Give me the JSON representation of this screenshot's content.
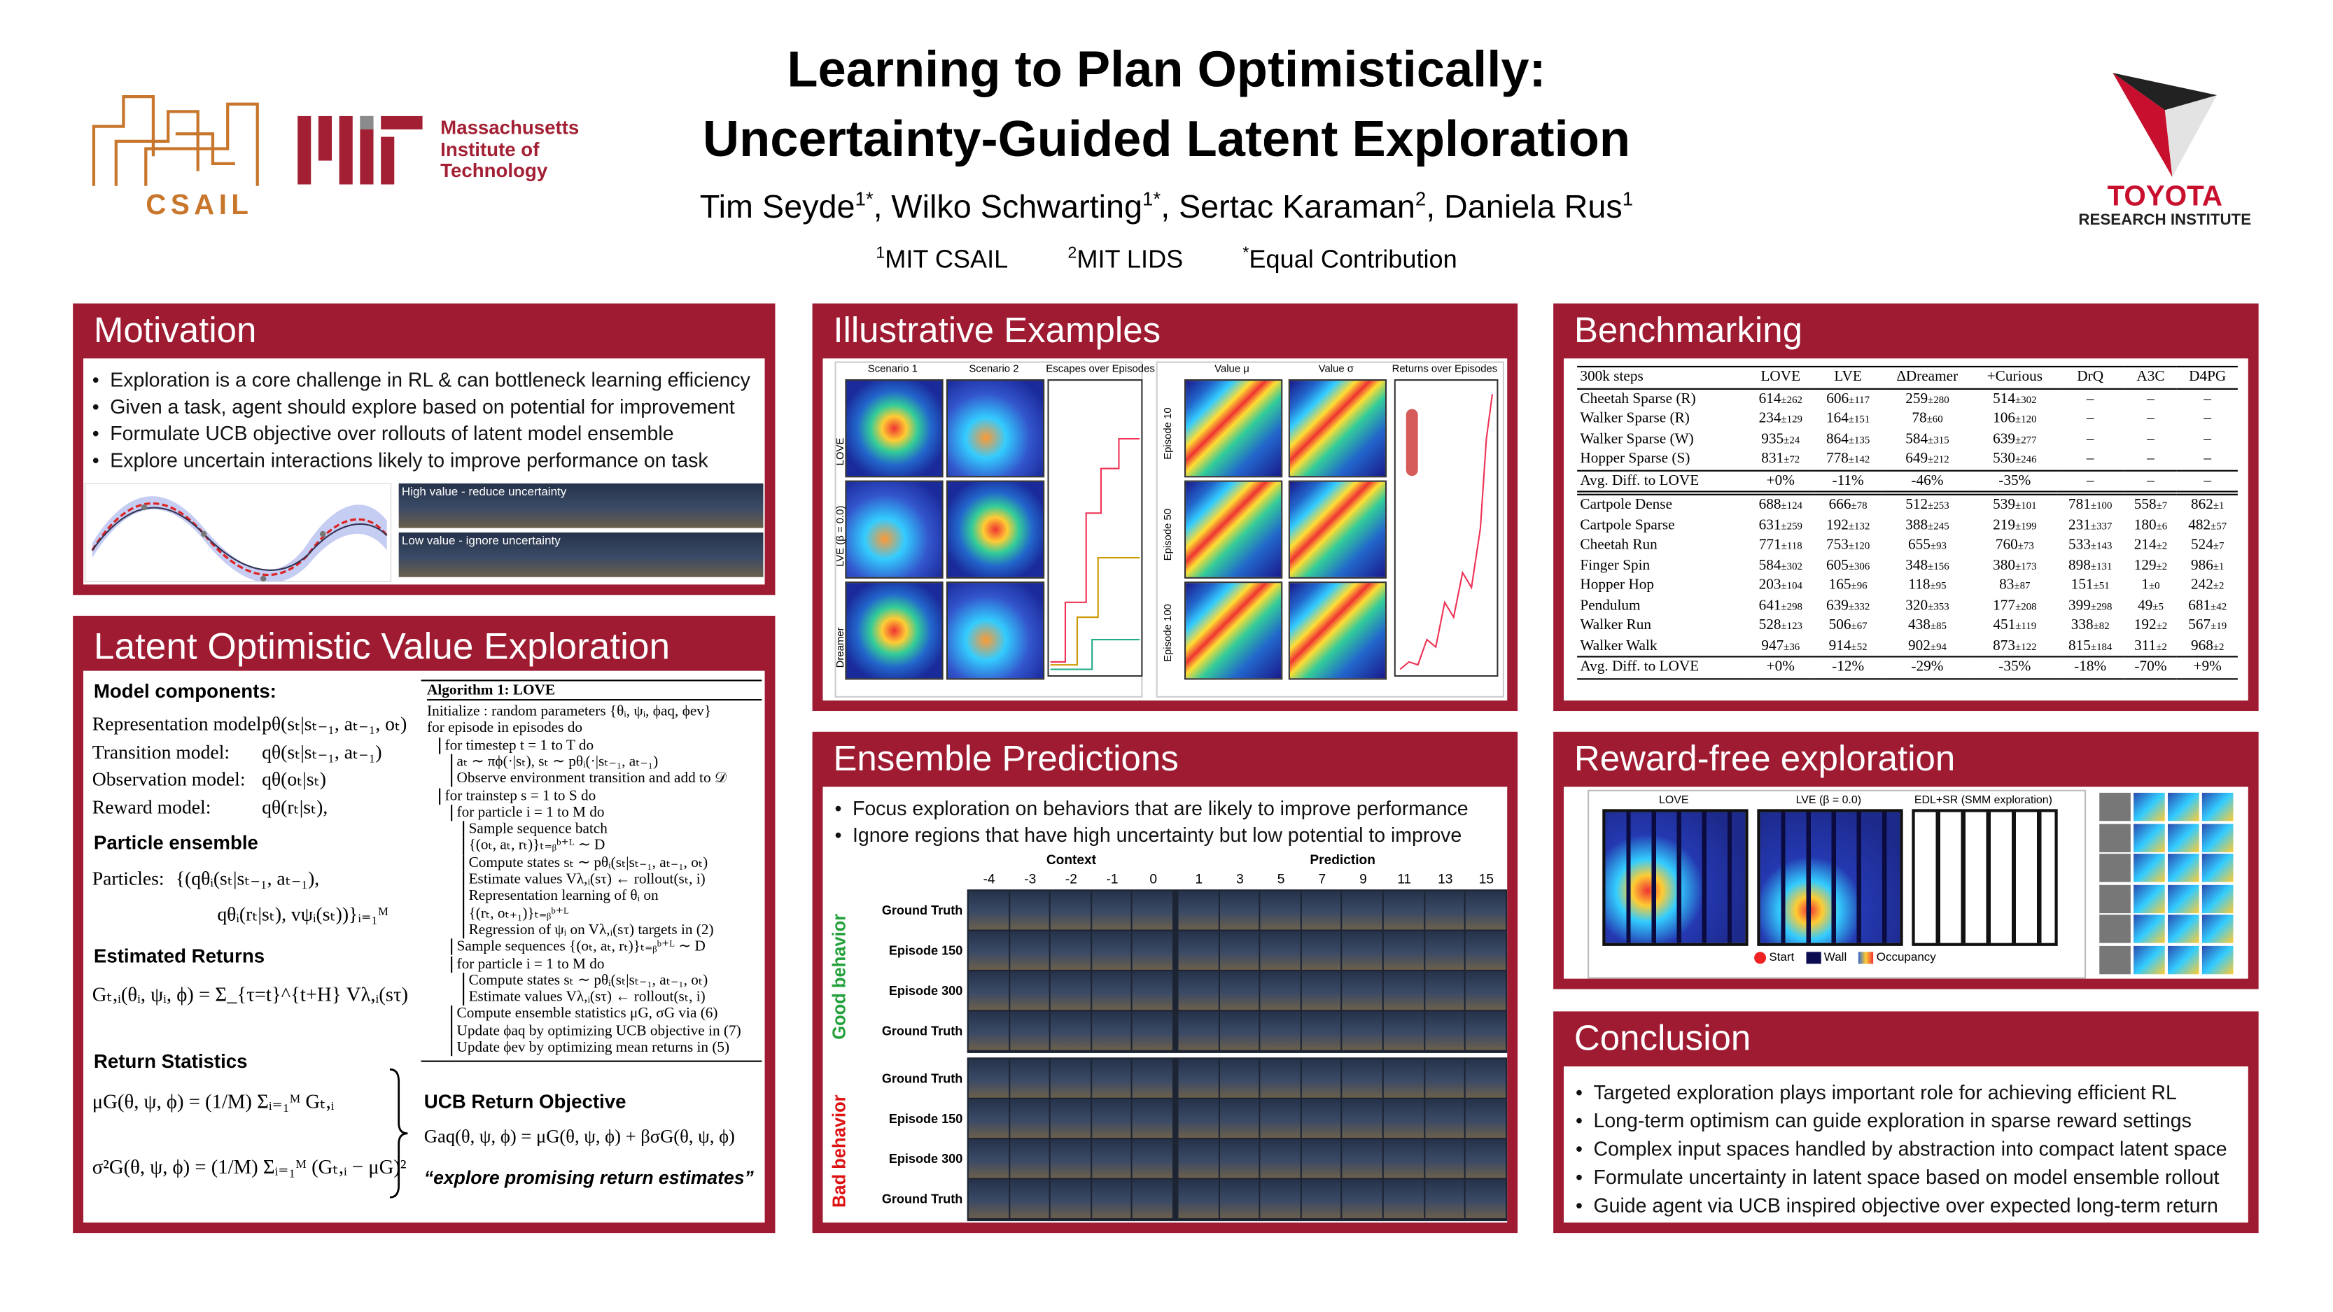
{
  "header": {
    "title_lines": [
      "Learning to Plan Optimistically:",
      "Uncertainty-Guided Latent Exploration"
    ],
    "authors": [
      {
        "name": "Tim Seyde",
        "sup": "1*",
        "suffix": ","
      },
      {
        "name": "Wilko Schwarting",
        "sup": "1*",
        "suffix": ","
      },
      {
        "name": "Sertac Karaman",
        "sup": "2",
        "suffix": ","
      },
      {
        "name": "Daniela Rus",
        "sup": "1"
      }
    ],
    "affiliations": [
      {
        "sup": "1",
        "text": "MIT CSAIL"
      },
      {
        "sup": "2",
        "text": "MIT LIDS"
      },
      {
        "sup": "*",
        "text": "Equal Contribution"
      }
    ],
    "logos": {
      "csail": "CSAIL",
      "mit": [
        "Massachusetts",
        "Institute of",
        "Technology"
      ],
      "toyota": "TOYOTA",
      "toyota_sub": "RESEARCH INSTITUTE"
    }
  },
  "motivation": {
    "title": "Motivation",
    "bullets": [
      "Exploration is a core challenge in RL & can bottleneck learning efficiency",
      "Given a task, agent should explore based on potential for improvement",
      "Formulate UCB objective over rollouts of latent model ensemble",
      "Explore uncertain interactions likely to improve performance on task"
    ],
    "strip_captions": [
      "High value - reduce uncertainty",
      "Low value - ignore uncertainty"
    ]
  },
  "love": {
    "title": "Latent Optimistic Value Exploration",
    "model_heading": "Model components:",
    "models": [
      {
        "label": "Representation model:",
        "formula": "pθ(sₜ|sₜ₋₁, aₜ₋₁, oₜ)"
      },
      {
        "label": "Transition model:",
        "formula": "qθ(sₜ|sₜ₋₁, aₜ₋₁)"
      },
      {
        "label": "Observation model:",
        "formula": "qθ(oₜ|sₜ)"
      },
      {
        "label": "Reward model:",
        "formula": "qθ(rₜ|sₜ),"
      }
    ],
    "particle_heading": "Particle ensemble",
    "particles_label": "Particles:",
    "particles_lines": [
      "{(qθᵢ(sₜ|sₜ₋₁, aₜ₋₁),",
      "qθᵢ(rₜ|sₜ),  vψᵢ(sₜ))}ᵢ₌₁ᴹ"
    ],
    "returns_heading": "Estimated Returns",
    "returns_formula": "Gₜ,ᵢ(θᵢ, ψᵢ, ϕ) = Σ_{τ=t}^{t+H} Vλ,ᵢ(sτ)",
    "stats_heading": "Return Statistics",
    "mean_formula": "μG(θ, ψ, ϕ) = (1/M) Σᵢ₌₁ᴹ Gₜ,ᵢ",
    "var_formula": "σ²G(θ, ψ, ϕ) = (1/M) Σᵢ₌₁ᴹ (Gₜ,ᵢ − μG)²",
    "ucb_heading": "UCB Return Objective",
    "ucb_formula": "Gaq(θ, ψ, ϕ) = μG(θ, ψ, ϕ) + βσG(θ, ψ, ϕ)",
    "ucb_quote": "“explore promising return estimates”",
    "algorithm": {
      "title": "Algorithm 1: LOVE",
      "lines": [
        "Initialize : random parameters {θᵢ, ψᵢ, ϕaq, ϕev}",
        "for episode in episodes do",
        "for timestep t = 1 to T do",
        "aₜ ∼ πϕ(·|sₜ), sₜ ∼ pθᵢ(·|sₜ₋₁, aₜ₋₁)",
        "Observe environment transition and add to 𝒟",
        "for trainstep s = 1 to S do",
        "for particle i = 1 to M do",
        "Sample sequence batch",
        "{(oₜ, aₜ, rₜ)}ₜ₌ᵦᵇ⁺ᴸ ∼ D",
        "Compute states sₜ ∼ pθᵢ(sₜ|sₜ₋₁, aₜ₋₁, oₜ)",
        "Estimate values Vλ,ᵢ(sτ) ← rollout(sₜ, i)",
        "Representation learning of θᵢ on",
        "{(rₜ, oₜ₊₁)}ₜ₌ᵦᵇ⁺ᴸ",
        "Regression of ψᵢ on Vλ,ᵢ(sτ) targets in (2)",
        "Sample sequences {(oₜ, aₜ, rₜ)}ₜ₌ᵦᵇ⁺ᴸ ∼ D",
        "for particle i = 1 to M do",
        "Compute states sₜ ∼ pθᵢ(sₜ|sₜ₋₁, aₜ₋₁, oₜ)",
        "Estimate values Vλ,ᵢ(sτ) ← rollout(sₜ, i)",
        "Compute ensemble statistics μG, σG via (6)",
        "Update ϕaq by optimizing UCB objective in (7)",
        "Update ϕev by optimizing mean returns in (5)"
      ]
    }
  },
  "illustrative": {
    "title": "Illustrative Examples",
    "left_columns": [
      "Scenario 1",
      "Scenario 2"
    ],
    "left_rows": [
      "LOVE",
      "LVE (β = 0.0)",
      "Dreamer"
    ],
    "escapes_title": "Escapes over Episodes",
    "right_columns": [
      "Value μ",
      "Value σ"
    ],
    "right_rows": [
      "Episode 10",
      "Episode 50",
      "Episode 100"
    ],
    "returns_title": "Returns over Episodes"
  },
  "benchmark": {
    "title": "Benchmarking",
    "header": [
      "300k steps",
      "LOVE",
      "LVE",
      "∆Dreamer",
      "+Curious",
      "DrQ",
      "A3C",
      "D4PG"
    ],
    "groups": [
      {
        "rows": [
          {
            "label": "Cheetah Sparse (R)",
            "cells": [
              [
                "614",
                "±262"
              ],
              [
                "606",
                "±117"
              ],
              [
                "259",
                "±280"
              ],
              [
                "514",
                "±302"
              ],
              [
                "–"
              ],
              [
                "–"
              ],
              [
                "–"
              ]
            ]
          },
          {
            "label": "Walker Sparse (R)",
            "cells": [
              [
                "234",
                "±129"
              ],
              [
                "164",
                "±151"
              ],
              [
                "78",
                "±60"
              ],
              [
                "106",
                "±120"
              ],
              [
                "–"
              ],
              [
                "–"
              ],
              [
                "–"
              ]
            ]
          },
          {
            "label": "Walker Sparse (W)",
            "cells": [
              [
                "935",
                "±24"
              ],
              [
                "864",
                "±135"
              ],
              [
                "584",
                "±315"
              ],
              [
                "639",
                "±277"
              ],
              [
                "–"
              ],
              [
                "–"
              ],
              [
                "–"
              ]
            ]
          },
          {
            "label": "Hopper Sparse (S)",
            "cells": [
              [
                "831",
                "±72"
              ],
              [
                "778",
                "±142"
              ],
              [
                "649",
                "±212"
              ],
              [
                "530",
                "±246"
              ],
              [
                "–"
              ],
              [
                "–"
              ],
              [
                "–"
              ]
            ]
          },
          {
            "label": "Avg. Diff. to LOVE",
            "cells": [
              [
                "+0%"
              ],
              [
                "-11%"
              ],
              [
                "-46%"
              ],
              [
                "-35%"
              ],
              [
                "–"
              ],
              [
                "–"
              ],
              [
                "–"
              ]
            ]
          }
        ]
      },
      {
        "rows": [
          {
            "label": "Cartpole Dense",
            "cells": [
              [
                "688",
                "±124"
              ],
              [
                "666",
                "±78"
              ],
              [
                "512",
                "±253"
              ],
              [
                "539",
                "±101"
              ],
              [
                "781",
                "±100"
              ],
              [
                "558",
                "±7"
              ],
              [
                "862",
                "±1"
              ]
            ]
          },
          {
            "label": "Cartpole Sparse",
            "cells": [
              [
                "631",
                "±259"
              ],
              [
                "192",
                "±132"
              ],
              [
                "388",
                "±245"
              ],
              [
                "219",
                "±199"
              ],
              [
                "231",
                "±337"
              ],
              [
                "180",
                "±6"
              ],
              [
                "482",
                "±57"
              ]
            ]
          },
          {
            "label": "Cheetah Run",
            "cells": [
              [
                "771",
                "±118"
              ],
              [
                "753",
                "±120"
              ],
              [
                "655",
                "±93"
              ],
              [
                "760",
                "±73"
              ],
              [
                "533",
                "±143"
              ],
              [
                "214",
                "±2"
              ],
              [
                "524",
                "±7"
              ]
            ]
          },
          {
            "label": "Finger Spin",
            "cells": [
              [
                "584",
                "±302"
              ],
              [
                "605",
                "±306"
              ],
              [
                "348",
                "±156"
              ],
              [
                "380",
                "±173"
              ],
              [
                "898",
                "±131"
              ],
              [
                "129",
                "±2"
              ],
              [
                "986",
                "±1"
              ]
            ]
          },
          {
            "label": "Hopper Hop",
            "cells": [
              [
                "203",
                "±104"
              ],
              [
                "165",
                "±96"
              ],
              [
                "118",
                "±95"
              ],
              [
                "83",
                "±87"
              ],
              [
                "151",
                "±51"
              ],
              [
                "1",
                "±0"
              ],
              [
                "242",
                "±2"
              ]
            ]
          },
          {
            "label": "Pendulum",
            "cells": [
              [
                "641",
                "±298"
              ],
              [
                "639",
                "±332"
              ],
              [
                "320",
                "±353"
              ],
              [
                "177",
                "±208"
              ],
              [
                "399",
                "±298"
              ],
              [
                "49",
                "±5"
              ],
              [
                "681",
                "±42"
              ]
            ]
          },
          {
            "label": "Walker Run",
            "cells": [
              [
                "528",
                "±123"
              ],
              [
                "506",
                "±67"
              ],
              [
                "438",
                "±85"
              ],
              [
                "451",
                "±119"
              ],
              [
                "338",
                "±82"
              ],
              [
                "192",
                "±2"
              ],
              [
                "567",
                "±19"
              ]
            ]
          },
          {
            "label": "Walker Walk",
            "cells": [
              [
                "947",
                "±36"
              ],
              [
                "914",
                "±52"
              ],
              [
                "902",
                "±94"
              ],
              [
                "873",
                "±122"
              ],
              [
                "815",
                "±184"
              ],
              [
                "311",
                "±2"
              ],
              [
                "968",
                "±2"
              ]
            ]
          },
          {
            "label": "Avg. Diff. to LOVE",
            "cells": [
              [
                "+0%"
              ],
              [
                "-12%"
              ],
              [
                "-29%"
              ],
              [
                "-35%"
              ],
              [
                "-18%"
              ],
              [
                "-70%"
              ],
              [
                "+9%"
              ]
            ]
          }
        ]
      }
    ]
  },
  "ensemble": {
    "title": "Ensemble Predictions",
    "bullets": [
      "Focus exploration on behaviors that are likely to improve performance",
      "Ignore regions that have high uncertainty but low potential to improve"
    ],
    "context_label": "Context",
    "prediction_label": "Prediction",
    "context_steps": [
      "-4",
      "-3",
      "-2",
      "-1",
      "0"
    ],
    "prediction_steps": [
      "1",
      "3",
      "5",
      "7",
      "9",
      "11",
      "13",
      "15"
    ],
    "blocks": [
      {
        "label": "Good behavior",
        "rows": [
          "Ground Truth",
          "Episode 150",
          "Episode 300",
          "Ground Truth"
        ]
      },
      {
        "label": "Bad behavior",
        "rows": [
          "Ground Truth",
          "Episode 150",
          "Episode 300",
          "Ground Truth"
        ]
      }
    ]
  },
  "reward_free": {
    "title": "Reward-free exploration",
    "panels": [
      "LOVE",
      "LVE (β = 0.0)",
      "EDL+SR (SMM exploration)"
    ],
    "legend": [
      "Start",
      "Wall",
      "Occupancy"
    ]
  },
  "conclusion": {
    "title": "Conclusion",
    "bullets": [
      "Targeted exploration plays important role for achieving efficient RL",
      "Long-term optimism can guide exploration in sparse reward settings",
      "Complex input spaces handled by abstraction into compact latent space",
      "Formulate uncertainty in latent space based on model ensemble rollout",
      "Guide agent via UCB inspired objective over expected long-term return"
    ]
  }
}
